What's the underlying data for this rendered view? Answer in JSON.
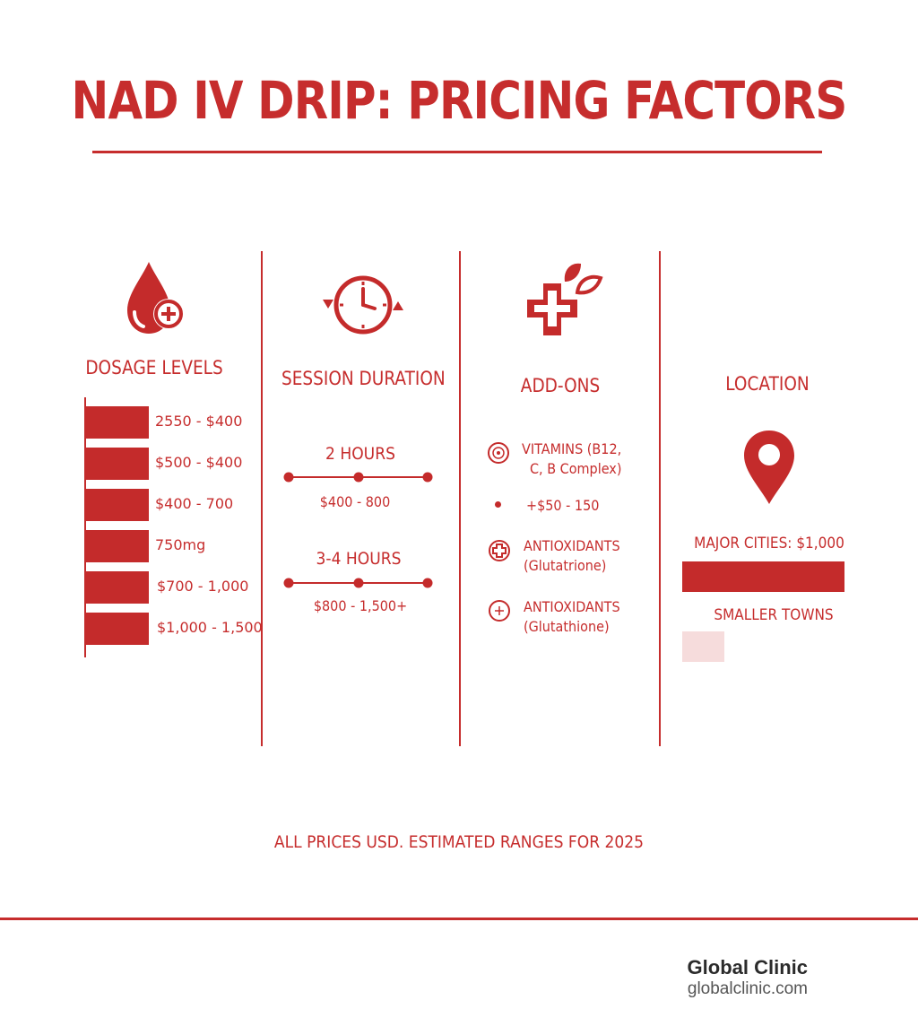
{
  "title": "NAD IV DRIP: PRICING FACTORS",
  "colors": {
    "accent": "#c62d2d",
    "light_bar": "#f6dcdc"
  },
  "dosage": {
    "heading": "DOSAGE LEVELS",
    "icon": "blood-drop-plus-icon",
    "tiers": [
      "2550 - $400",
      "$500 - $400",
      "$400 - 700",
      "750mg",
      "$700 - 1,000",
      "$1,000 - 1,500"
    ]
  },
  "duration": {
    "heading": "SESSION DURATION",
    "icon": "clock-refresh-icon",
    "options": [
      {
        "label": "2 HOURS",
        "price": "$400 - 800"
      },
      {
        "label": "3-4 HOURS",
        "price": "$800 - 1,500+"
      }
    ]
  },
  "addons": {
    "heading": "ADD-ONS",
    "icon": "medical-cross-leaf-icon",
    "items": [
      {
        "line1": "VITAMINS (B12,",
        "line2": "C, B Complex)",
        "icon": "vitamin-icon"
      },
      {
        "line1": "+$50 - 150",
        "line2": "",
        "icon": "bullet-dot"
      },
      {
        "line1": "ANTIOXIDANTS",
        "line2": "(Glutatrione)",
        "icon": "cross-gear-icon"
      },
      {
        "line1": "ANTIOXIDANTS",
        "line2": "(Glutathione)",
        "icon": "leaf-circle-icon"
      }
    ]
  },
  "location": {
    "heading": "LOCATION",
    "icon": "map-pin-icon",
    "major": {
      "label": "MAJOR CITIES: $1,000"
    },
    "small": {
      "label": "SMALLER TOWNS"
    }
  },
  "note": "ALL PRICES USD. ESTIMATED RANGES FOR 2025",
  "brand": {
    "name": "Global Clinic",
    "url": "globalclinic.com"
  }
}
